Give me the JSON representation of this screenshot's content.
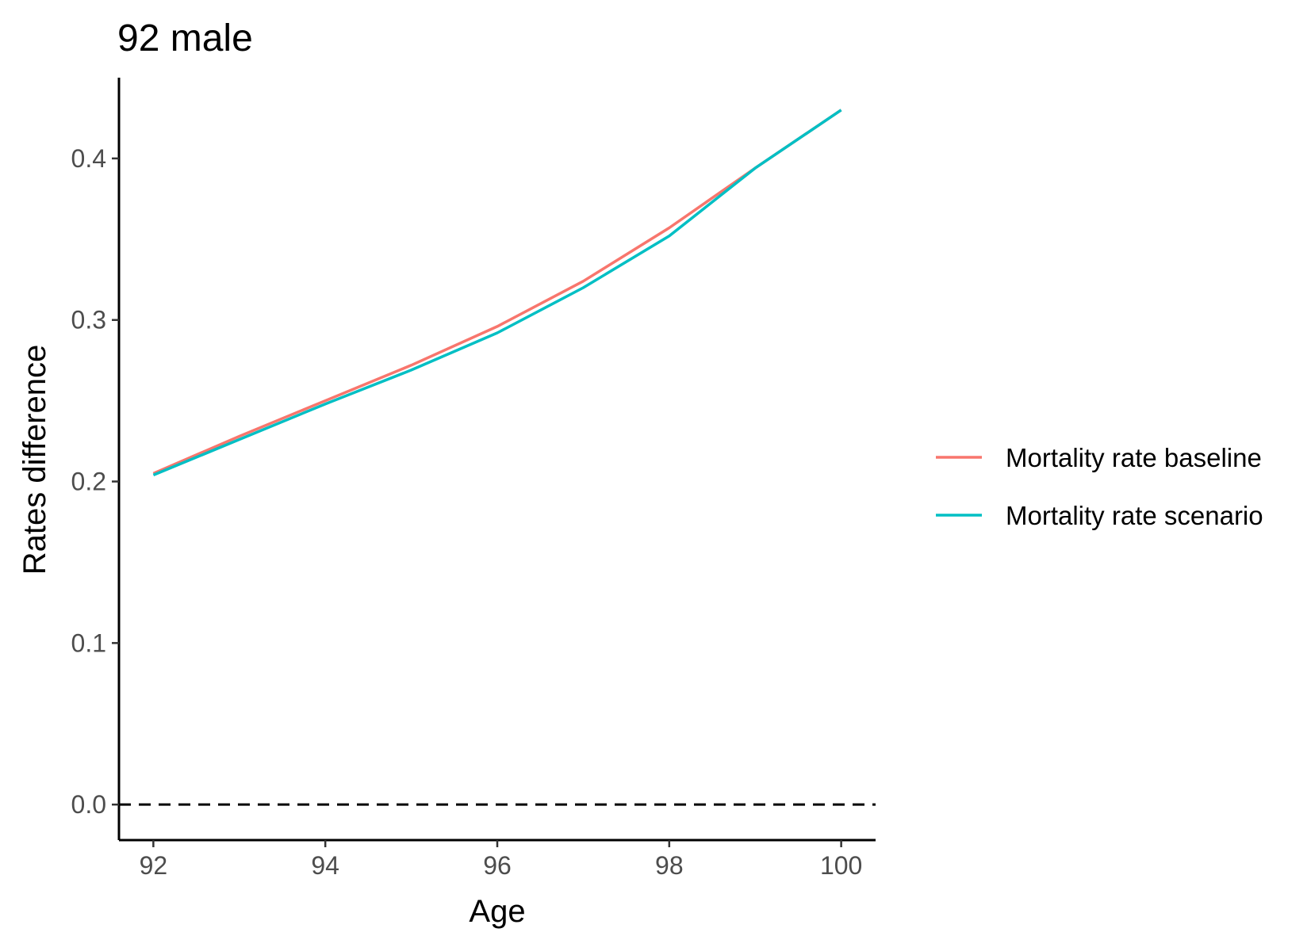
{
  "chart_data": {
    "type": "line",
    "title": "92 male",
    "xlabel": "Age",
    "ylabel": "Rates difference",
    "xlim": [
      91.6,
      100.4
    ],
    "ylim": [
      -0.022,
      0.45
    ],
    "x_ticks": [
      92,
      94,
      96,
      98,
      100
    ],
    "x_tick_labels": [
      "92",
      "94",
      "96",
      "98",
      "100"
    ],
    "y_ticks": [
      0.0,
      0.1,
      0.2,
      0.3,
      0.4
    ],
    "y_tick_labels": [
      "0.0",
      "0.1",
      "0.2",
      "0.3",
      "0.4"
    ],
    "reference_line": {
      "y": 0.0,
      "style": "dashed",
      "color": "#000000"
    },
    "grid": false,
    "legend_position": "right",
    "x": [
      92,
      93,
      94,
      95,
      96,
      97,
      98,
      99,
      100
    ],
    "series": [
      {
        "name": "Mortality rate baseline",
        "color": "#F8766D",
        "values": [
          0.205,
          0.228,
          0.25,
          0.272,
          0.296,
          0.324,
          0.357,
          0.394,
          0.43
        ]
      },
      {
        "name": "Mortality rate scenario",
        "color": "#00BFC4",
        "values": [
          0.204,
          0.226,
          0.248,
          0.269,
          0.292,
          0.32,
          0.352,
          0.394,
          0.43
        ]
      }
    ]
  }
}
